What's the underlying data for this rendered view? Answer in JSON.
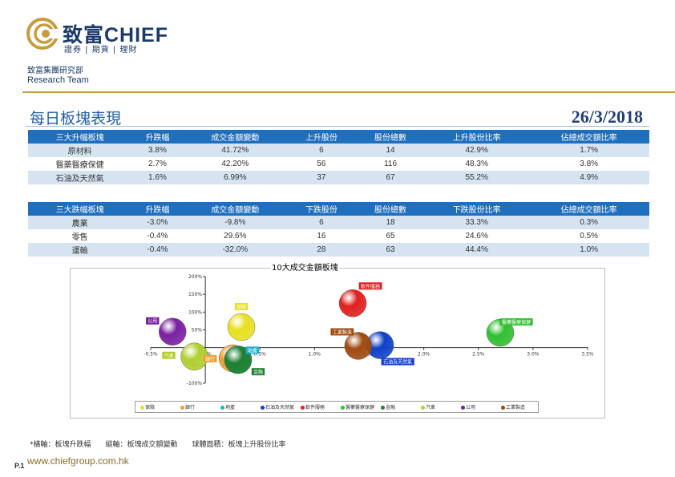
{
  "header": {
    "brand": "致富CHIEF",
    "brand_sub": "證券 | 期貨 | 理財",
    "research_cn": "致富集團研究部",
    "research_en": "Research Team",
    "logo_icon": "chief-swirl-logo-icon"
  },
  "section": {
    "title": "每日板塊表現",
    "date": "26/3/2018"
  },
  "gainers": {
    "headers": [
      "三大升幅板塊",
      "升跌幅",
      "成交金額變動",
      "上升股份",
      "股份總數",
      "上升股份比率",
      "佔總成交額比率"
    ],
    "rows": [
      [
        "原材料",
        "3.8%",
        "41.72%",
        "6",
        "14",
        "42.9%",
        "1.7%"
      ],
      [
        "醫藥醫療保健",
        "2.7%",
        "42.20%",
        "56",
        "116",
        "48.3%",
        "3.8%"
      ],
      [
        "石油及天然氣",
        "1.6%",
        "6.99%",
        "37",
        "67",
        "55.2%",
        "4.9%"
      ]
    ]
  },
  "losers": {
    "headers": [
      "三大跌幅板塊",
      "升跌幅",
      "成交金額變動",
      "下跌股份",
      "股份總數",
      "下跌股份比率",
      "佔總成交額比率"
    ],
    "rows": [
      [
        "農業",
        "-3.0%",
        "-9.8%",
        "6",
        "18",
        "33.3%",
        "0.3%"
      ],
      [
        "零售",
        "-0.4%",
        "29.6%",
        "16",
        "65",
        "24.6%",
        "0.5%"
      ],
      [
        "運輸",
        "-0.4%",
        "-32.0%",
        "28",
        "63",
        "44.4%",
        "1.0%"
      ]
    ]
  },
  "chart_data": {
    "type": "scatter",
    "title": "10大成交金額板塊",
    "xlim": [
      -0.5,
      3.5
    ],
    "ylim": [
      -100,
      200
    ],
    "x_ticks": [
      "-0.5%",
      "0.0%",
      "0.5%",
      "1.0%",
      "1.5%",
      "2.0%",
      "2.5%",
      "3.0%",
      "3.5%"
    ],
    "y_ticks": [
      "200%",
      "150%",
      "100%",
      "50%",
      "0%",
      "-50%",
      "-100%"
    ],
    "grid": false,
    "legend_position": "bottom",
    "series": [
      {
        "name": "保險",
        "x": 0.33,
        "y": 58,
        "color": "#e8e020"
      },
      {
        "name": "銀行",
        "x": 0.25,
        "y": -30,
        "color": "#f0a030"
      },
      {
        "name": "地產",
        "x": 0.3,
        "y": -33,
        "color": "#20b0d0"
      },
      {
        "name": "石油及天然氣",
        "x": 1.6,
        "y": 7,
        "color": "#1040c8"
      },
      {
        "name": "軟件服務",
        "x": 1.35,
        "y": 125,
        "color": "#e02020"
      },
      {
        "name": "醫藥醫療保健",
        "x": 2.7,
        "y": 42,
        "color": "#30c030"
      },
      {
        "name": "金融",
        "x": 0.3,
        "y": -35,
        "color": "#208030"
      },
      {
        "name": "汽車",
        "x": -0.1,
        "y": -25,
        "color": "#b0d030"
      },
      {
        "name": "公用",
        "x": -0.3,
        "y": 45,
        "color": "#7a20a0"
      },
      {
        "name": "工業製造",
        "x": 1.4,
        "y": 5,
        "color": "#a04a10"
      }
    ]
  },
  "legend_labels": [
    "保險",
    "銀行",
    "地產",
    "石油及天然氣",
    "軟件服務",
    "醫藥醫療保健",
    "金融",
    "汽車",
    "公用",
    "工業製造"
  ],
  "footer": {
    "note": "*橫軸：板塊升跌幅　　縱軸：板塊成交額變動　　球體面積：板塊上升股份比率",
    "website": "www.chiefgroup.com.hk",
    "page": "P.1"
  }
}
